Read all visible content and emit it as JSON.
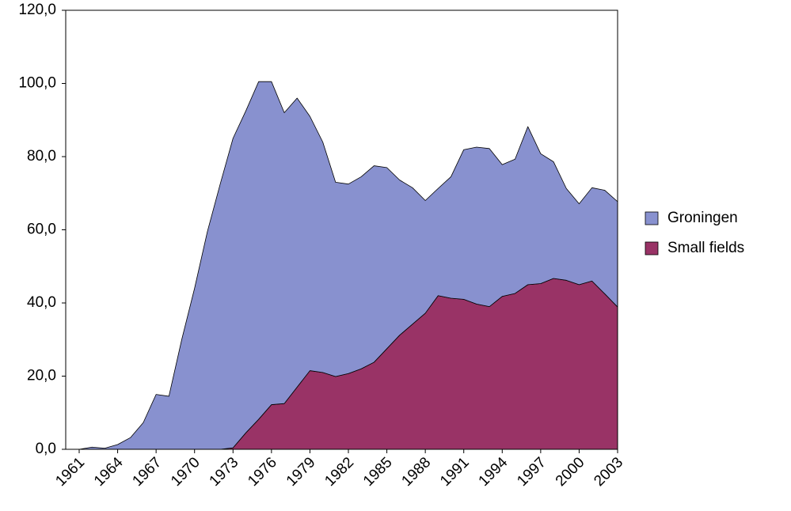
{
  "chart_data": {
    "type": "area",
    "stacked": true,
    "categories": [
      "1961",
      null,
      null,
      "1964",
      null,
      null,
      "1967",
      null,
      null,
      "1970",
      null,
      null,
      "1973",
      null,
      null,
      "1976",
      null,
      null,
      "1979",
      null,
      null,
      "1982",
      null,
      null,
      "1985",
      null,
      null,
      "1988",
      null,
      null,
      "1991",
      null,
      null,
      "1994",
      null,
      null,
      "1997",
      null,
      null,
      "2000",
      null,
      null,
      "2003"
    ],
    "series": [
      {
        "name": "Groningen",
        "color": "#8891cf",
        "values": [
          0,
          0.6,
          0.3,
          1.3,
          3.2,
          7.3,
          15,
          14.5,
          30,
          44,
          59.5,
          72.5,
          84.6,
          88,
          92.3,
          88.3,
          79.5,
          79,
          69.5,
          63,
          53.1,
          51.8,
          52.5,
          53.7,
          49.5,
          42.4,
          37.3,
          30.8,
          29.3,
          33.2,
          40.9,
          42.9,
          43.2,
          36,
          36.7,
          43.2,
          35.5,
          31.9,
          25.1,
          22.1,
          25.5,
          28.3,
          28.8
        ]
      },
      {
        "name": "Small fields",
        "color": "#993366",
        "values": [
          0,
          0,
          0,
          0,
          0,
          0,
          0,
          0,
          0,
          0,
          0,
          0,
          0.4,
          4.5,
          8.2,
          12.2,
          12.5,
          17,
          21.5,
          21,
          19.9,
          20.7,
          22,
          23.8,
          27.5,
          31.2,
          34.2,
          37.2,
          42,
          41.3,
          41,
          39.7,
          39,
          41.8,
          42.6,
          45,
          45.3,
          46.7,
          46.2,
          45,
          46,
          42.5,
          38.9
        ]
      }
    ],
    "ylim": [
      0,
      120
    ],
    "yticks": [
      {
        "value": 0,
        "label": "0,0"
      },
      {
        "value": 20,
        "label": "20,0"
      },
      {
        "value": 40,
        "label": "40,0"
      },
      {
        "value": 60,
        "label": "60,0"
      },
      {
        "value": 80,
        "label": "80,0"
      },
      {
        "value": 100,
        "label": "100,0"
      },
      {
        "value": 120,
        "label": "120,0"
      }
    ],
    "legend": "right"
  }
}
